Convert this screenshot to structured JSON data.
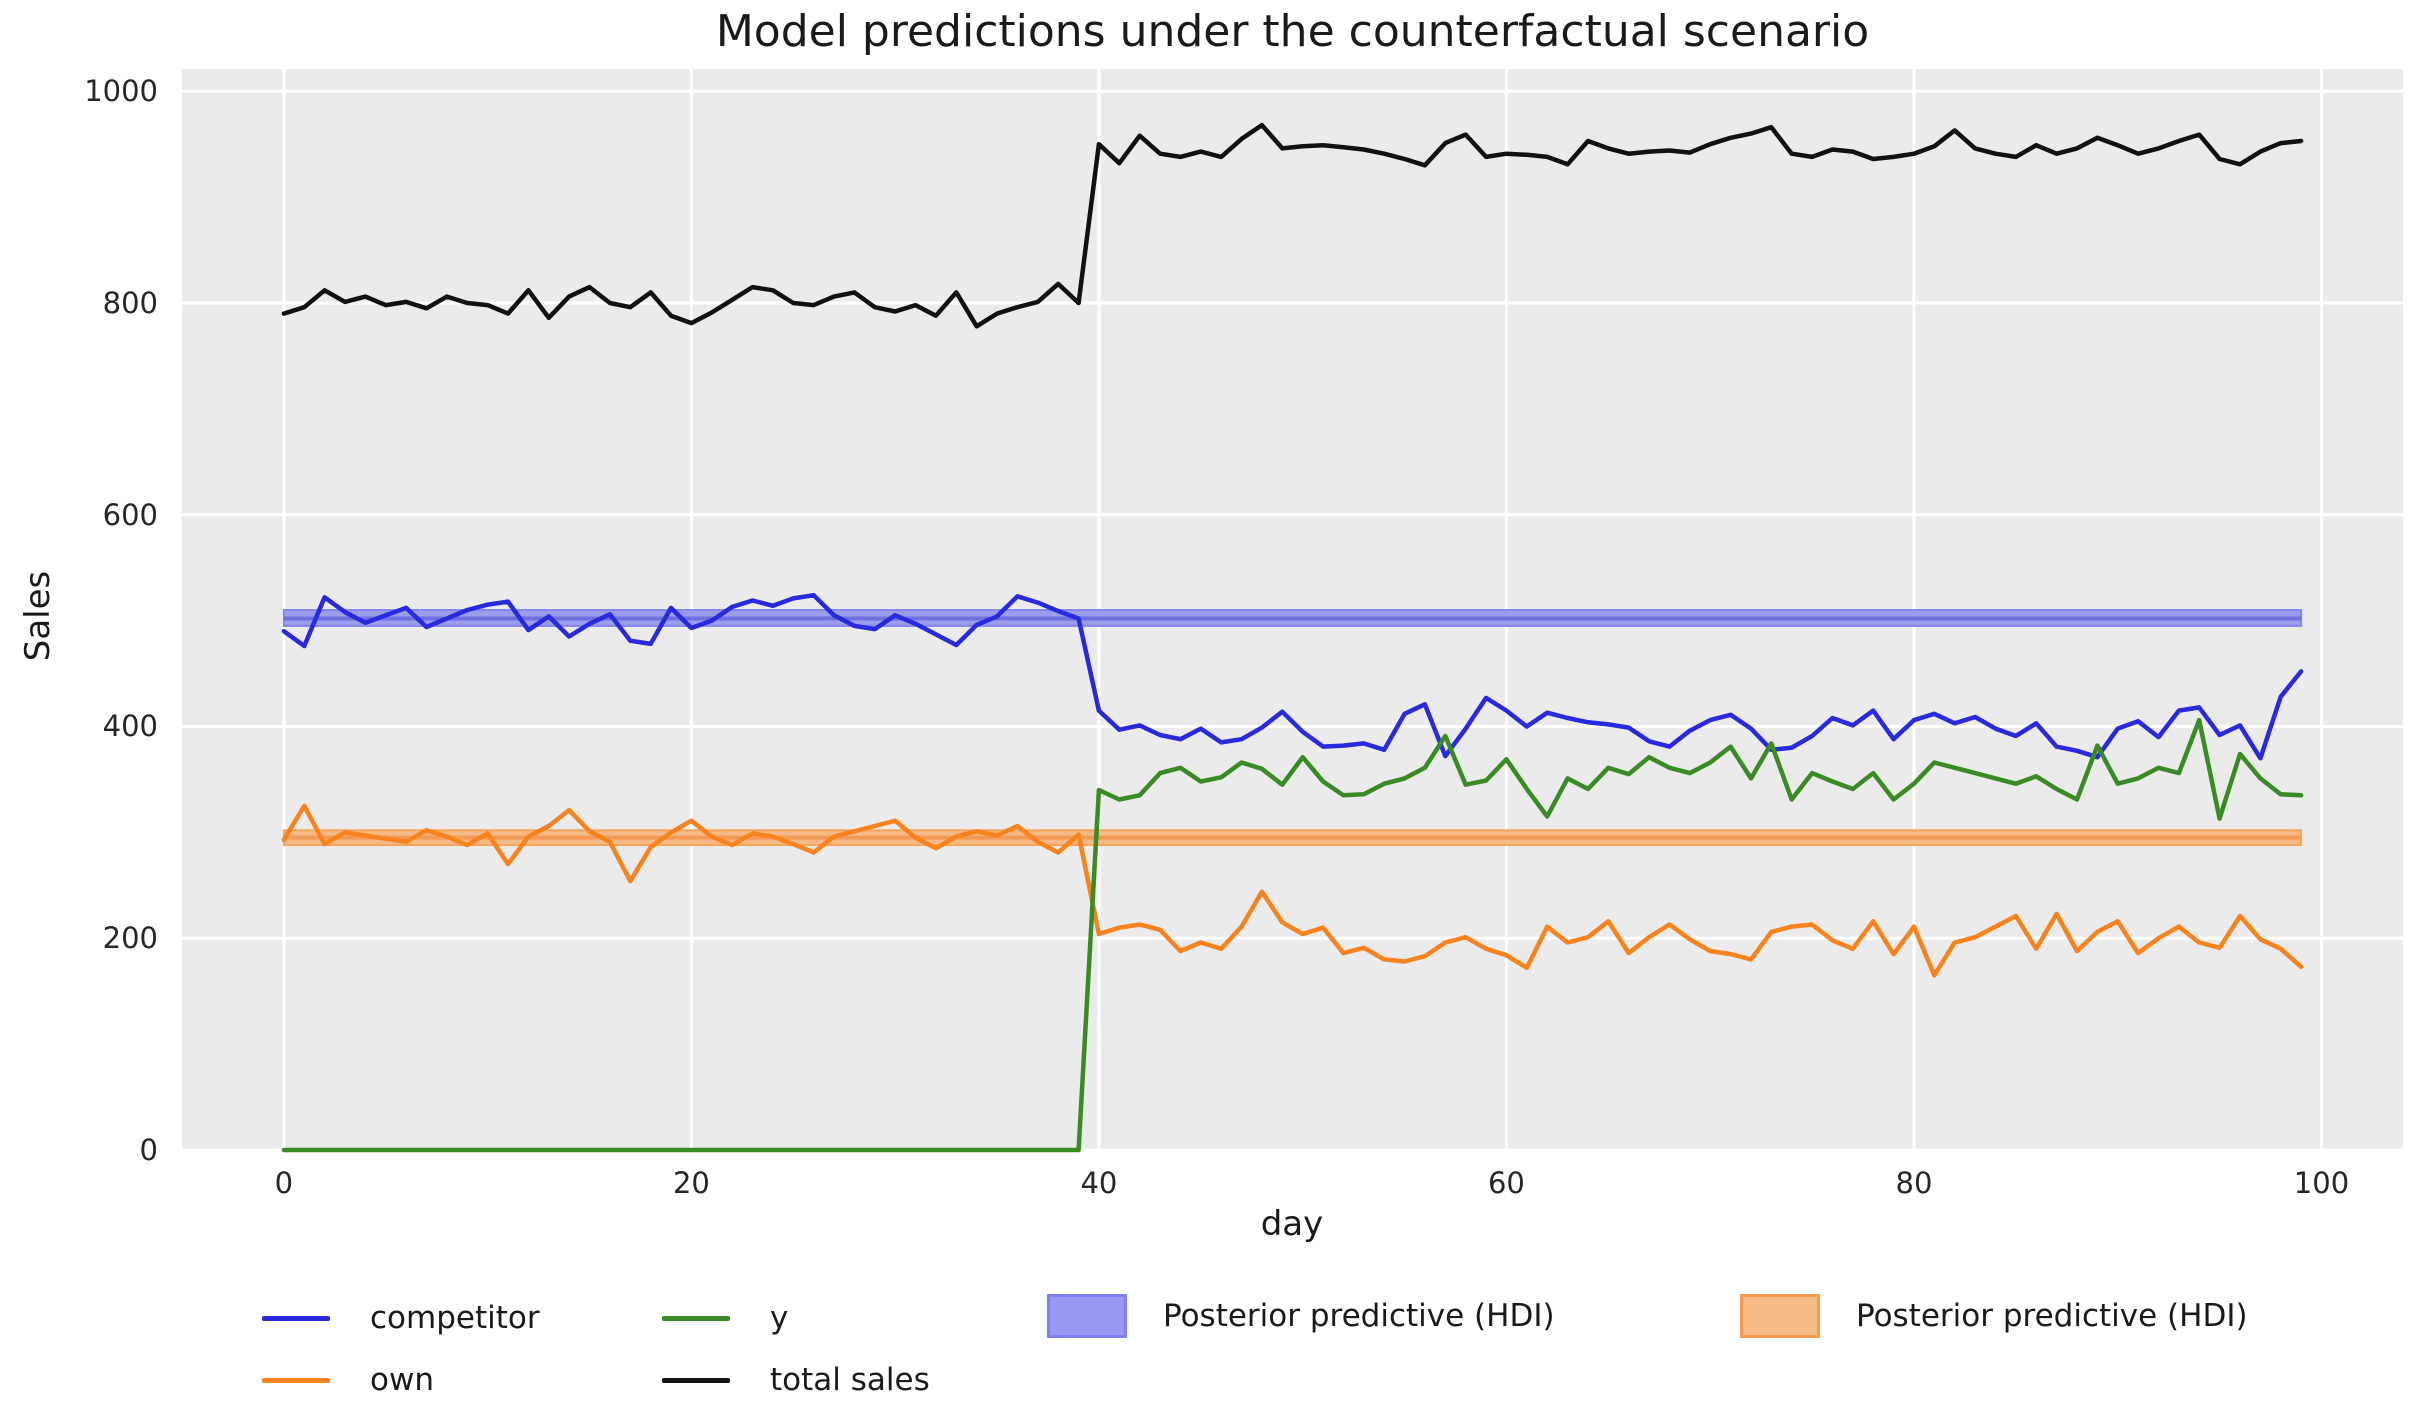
{
  "title": "Model predictions under the counterfactual scenario",
  "colors": {
    "plot_background": "#ebebeb",
    "figure_background": "#ffffff",
    "gridline": "#ffffff",
    "text": "#262626",
    "competitor_line": "#2929dd",
    "own_line": "#f8821d",
    "y_line": "#3a8b25",
    "total_sales_line": "#111111",
    "hdi_blue_fill": "#9c9cec",
    "hdi_blue_edge": "#8585f0",
    "hdi_blue_midline": "#6f6fe0",
    "hdi_orange_fill": "#f5b988",
    "hdi_orange_edge": "#f8a55c",
    "hdi_orange_midline": "#f29a55"
  },
  "legend": {
    "items": [
      {
        "label": "competitor",
        "type": "line",
        "color": "#2929dd",
        "border": "#2929dd"
      },
      {
        "label": "own",
        "type": "line",
        "color": "#f8821d",
        "border": "#f8821d"
      },
      {
        "label": "y",
        "type": "line",
        "color": "#3a8b25",
        "border": "#3a8b25"
      },
      {
        "label": "total sales",
        "type": "line",
        "color": "#111111",
        "border": "#111111"
      },
      {
        "label": "Posterior predictive (HDI)",
        "type": "patch",
        "color": "#9898f2",
        "border": "#8080f0"
      },
      {
        "label": "Posterior predictive (HDI)",
        "type": "patch",
        "color": "#f7bb85",
        "border": "#f79d4e"
      }
    ]
  },
  "chart_data": {
    "type": "line",
    "title": "Model predictions under the counterfactual scenario",
    "xlabel": "day",
    "ylabel": "Sales",
    "xlim": [
      -5,
      104
    ],
    "ylim": [
      0,
      1021
    ],
    "x_ticks": [
      0,
      20,
      40,
      60,
      80,
      100
    ],
    "y_ticks": [
      0,
      200,
      400,
      600,
      800,
      1000
    ],
    "grid": true,
    "legend_position": "below",
    "x": [
      0,
      1,
      2,
      3,
      4,
      5,
      6,
      7,
      8,
      9,
      10,
      11,
      12,
      13,
      14,
      15,
      16,
      17,
      18,
      19,
      20,
      21,
      22,
      23,
      24,
      25,
      26,
      27,
      28,
      29,
      30,
      31,
      32,
      33,
      34,
      35,
      36,
      37,
      38,
      39,
      40,
      41,
      42,
      43,
      44,
      45,
      46,
      47,
      48,
      49,
      50,
      51,
      52,
      53,
      54,
      55,
      56,
      57,
      58,
      59,
      60,
      61,
      62,
      63,
      64,
      65,
      66,
      67,
      68,
      69,
      70,
      71,
      72,
      73,
      74,
      75,
      76,
      77,
      78,
      79,
      80,
      81,
      82,
      83,
      84,
      85,
      86,
      87,
      88,
      89,
      90,
      91,
      92,
      93,
      94,
      95,
      96,
      97,
      98,
      99
    ],
    "series": [
      {
        "name": "competitor",
        "color": "#2929dd",
        "values": [
          490,
          476,
          522,
          508,
          498,
          505,
          512,
          494,
          502,
          510,
          515,
          518,
          491,
          504,
          485,
          497,
          506,
          481,
          478,
          512,
          493,
          500,
          513,
          519,
          514,
          521,
          524,
          505,
          495,
          492,
          505,
          497,
          487,
          477,
          496,
          504,
          523,
          517,
          509,
          502,
          415,
          397,
          401,
          392,
          388,
          398,
          385,
          388,
          399,
          414,
          395,
          381,
          382,
          384,
          378,
          412,
          421,
          372,
          398,
          427,
          415,
          400,
          413,
          408,
          404,
          402,
          399,
          386,
          381,
          396,
          406,
          411,
          398,
          378,
          380,
          391,
          408,
          401,
          415,
          388,
          406,
          412,
          403,
          409,
          398,
          391,
          403,
          381,
          377,
          371,
          398,
          405,
          390,
          415,
          418,
          392,
          401,
          370,
          428,
          452
        ]
      },
      {
        "name": "own",
        "color": "#f8821d",
        "values": [
          293,
          325,
          289,
          300,
          297,
          294,
          291,
          302,
          296,
          288,
          299,
          270,
          296,
          306,
          321,
          301,
          291,
          254,
          286,
          300,
          311,
          296,
          288,
          299,
          296,
          289,
          281,
          296,
          301,
          306,
          311,
          295,
          285,
          296,
          301,
          297,
          306,
          291,
          281,
          298,
          204,
          210,
          213,
          208,
          188,
          196,
          190,
          211,
          244,
          215,
          204,
          210,
          186,
          191,
          180,
          178,
          183,
          196,
          201,
          190,
          184,
          172,
          211,
          196,
          201,
          216,
          186,
          201,
          213,
          199,
          188,
          185,
          180,
          206,
          211,
          213,
          198,
          190,
          216,
          185,
          211,
          165,
          196,
          201,
          211,
          221,
          190,
          223,
          188,
          206,
          216,
          186,
          200,
          211,
          196,
          191,
          221,
          199,
          190,
          173
        ]
      },
      {
        "name": "y",
        "color": "#3a8b25",
        "values": [
          0,
          0,
          0,
          0,
          0,
          0,
          0,
          0,
          0,
          0,
          0,
          0,
          0,
          0,
          0,
          0,
          0,
          0,
          0,
          0,
          0,
          0,
          0,
          0,
          0,
          0,
          0,
          0,
          0,
          0,
          0,
          0,
          0,
          0,
          0,
          0,
          0,
          0,
          0,
          0,
          340,
          331,
          335,
          356,
          361,
          348,
          352,
          366,
          360,
          345,
          371,
          348,
          335,
          336,
          346,
          351,
          361,
          391,
          345,
          349,
          369,
          341,
          315,
          351,
          341,
          361,
          355,
          371,
          361,
          356,
          366,
          381,
          351,
          384,
          331,
          356,
          348,
          341,
          356,
          331,
          346,
          366,
          361,
          356,
          351,
          346,
          353,
          341,
          331,
          382,
          346,
          351,
          361,
          356,
          406,
          313,
          374,
          351,
          336,
          335
        ]
      },
      {
        "name": "total sales",
        "color": "#111111",
        "values": [
          790,
          796,
          812,
          801,
          806,
          798,
          801,
          795,
          806,
          800,
          798,
          790,
          812,
          786,
          806,
          815,
          800,
          796,
          810,
          788,
          781,
          791,
          803,
          815,
          812,
          800,
          798,
          806,
          810,
          796,
          792,
          798,
          788,
          810,
          778,
          790,
          796,
          801,
          818,
          800,
          950,
          932,
          958,
          941,
          938,
          943,
          938,
          955,
          968,
          946,
          948,
          949,
          947,
          945,
          941,
          936,
          930,
          951,
          959,
          938,
          941,
          940,
          938,
          931,
          953,
          946,
          941,
          943,
          944,
          942,
          950,
          956,
          960,
          966,
          941,
          938,
          945,
          943,
          936,
          938,
          941,
          948,
          963,
          946,
          941,
          938,
          949,
          941,
          946,
          956,
          949,
          941,
          946,
          953,
          959,
          936,
          931,
          943,
          951,
          953
        ]
      }
    ],
    "bands": [
      {
        "name": "Posterior predictive (HDI) — competitor",
        "x_start": 0,
        "x_end": 99,
        "lower": 495,
        "upper": 510,
        "mid": 502,
        "fill": "#9c9cec",
        "edge": "#8585f0",
        "midline": "#6f6fe0"
      },
      {
        "name": "Posterior predictive (HDI) — own",
        "x_start": 0,
        "x_end": 99,
        "lower": 288,
        "upper": 302,
        "mid": 295,
        "fill": "#f5b988",
        "edge": "#f8a55c",
        "midline": "#f29a55"
      }
    ]
  }
}
